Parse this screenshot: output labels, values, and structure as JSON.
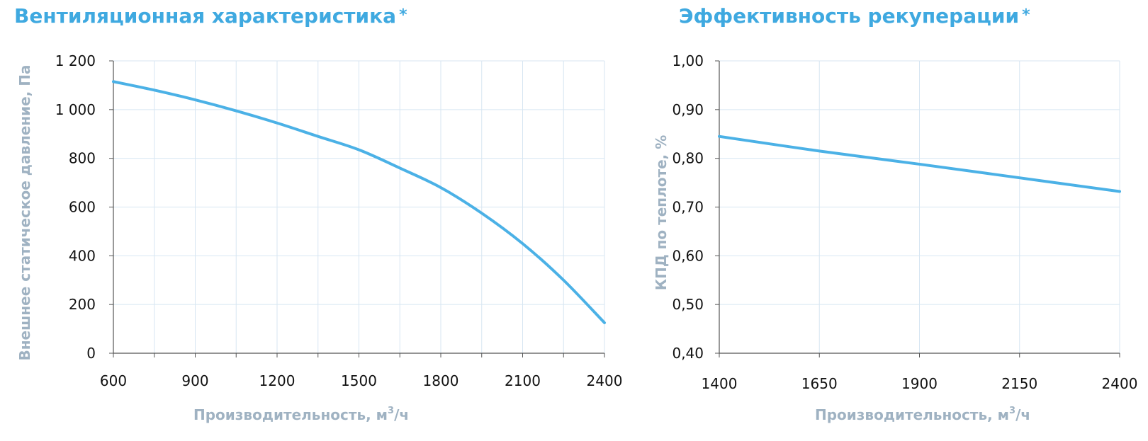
{
  "chart_data": [
    {
      "type": "line",
      "title": "Вентиляционная характеристика",
      "title_mark": "*",
      "xlabel": "Производительность, м",
      "xlabel_sup": "3",
      "xlabel_tail": "/ч",
      "ylabel": "Внешнее статическое давление, Па",
      "xlim": [
        600,
        2400
      ],
      "ylim": [
        0,
        1200
      ],
      "x_ticks": [
        600,
        900,
        1200,
        1500,
        1800,
        2100,
        2400
      ],
      "x_tick_labels": [
        "600",
        "900",
        "1200",
        "1500",
        "1800",
        "2100",
        "2400"
      ],
      "x_minor_grid": [
        750,
        1050,
        1350,
        1650,
        1950,
        2250
      ],
      "y_ticks": [
        0,
        200,
        400,
        600,
        800,
        1000,
        1200
      ],
      "y_tick_labels": [
        "0",
        "200",
        "400",
        "600",
        "800",
        "1 000",
        "1 200"
      ],
      "grid": true,
      "color": "#4bb1e6",
      "series": [
        {
          "x": [
            600,
            750,
            900,
            1050,
            1200,
            1350,
            1500,
            1650,
            1800,
            1950,
            2100,
            2250,
            2400
          ],
          "values": [
            1115,
            1080,
            1040,
            995,
            945,
            890,
            835,
            760,
            680,
            575,
            450,
            300,
            125
          ]
        }
      ]
    },
    {
      "type": "line",
      "title": "Эффективность рекуперации",
      "title_mark": "*",
      "xlabel": "Производительность, м",
      "xlabel_sup": "3",
      "xlabel_tail": "/ч",
      "ylabel": "КПД по теплоте, %",
      "xlim": [
        1400,
        2400
      ],
      "ylim": [
        0.4,
        1.0
      ],
      "x_ticks": [
        1400,
        1650,
        1900,
        2150,
        2400
      ],
      "x_tick_labels": [
        "1400",
        "1650",
        "1900",
        "2150",
        "2400"
      ],
      "y_ticks": [
        0.4,
        0.5,
        0.6,
        0.7,
        0.8,
        0.9,
        1.0
      ],
      "y_tick_labels": [
        "0,40",
        "0,50",
        "0,60",
        "0,70",
        "0,80",
        "0,90",
        "1,00"
      ],
      "grid": true,
      "color": "#4bb1e6",
      "series": [
        {
          "x": [
            1400,
            1650,
            1900,
            2150,
            2400
          ],
          "values": [
            0.845,
            0.815,
            0.788,
            0.76,
            0.732
          ]
        }
      ]
    }
  ]
}
